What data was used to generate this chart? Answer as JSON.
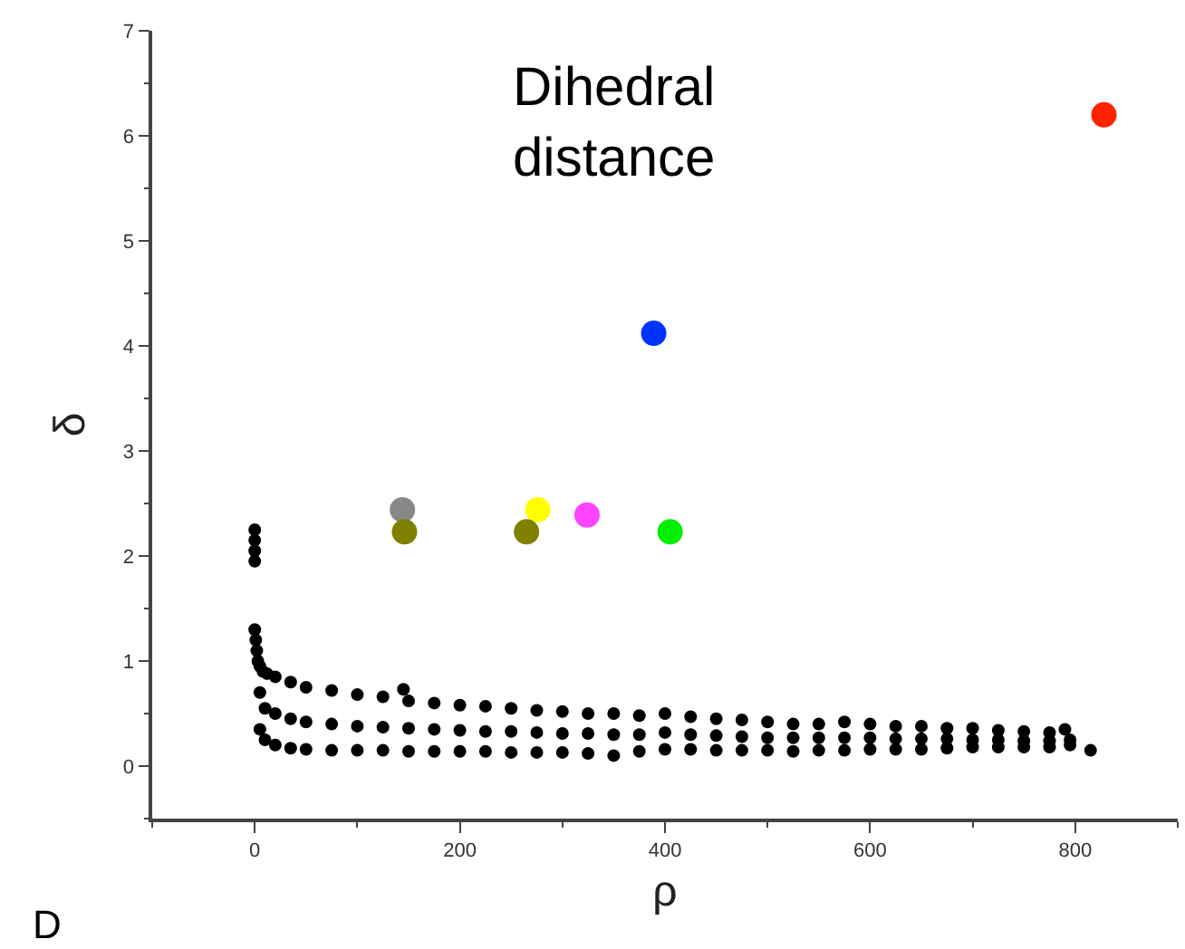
{
  "chart_data": {
    "type": "scatter",
    "title": "Dihedral\ndistance",
    "xlabel": "ρ",
    "ylabel": "δ",
    "xlim": [
      -100,
      900
    ],
    "xticks": [
      0,
      200,
      400,
      600,
      800
    ],
    "ylim": [
      -0.5,
      7
    ],
    "yticks": [
      0,
      1,
      2,
      3,
      4,
      5,
      6,
      7
    ],
    "marker": "circle",
    "annotations": [
      "D"
    ],
    "series": [
      {
        "color": "#000000",
        "x": [
          0,
          0,
          0,
          0,
          0,
          1,
          2,
          3,
          5,
          8,
          12,
          20,
          35,
          50,
          75,
          100,
          125,
          150,
          175,
          200,
          225,
          250,
          275,
          300,
          325,
          350,
          375,
          400,
          425,
          450,
          475,
          500,
          525,
          550,
          575,
          600,
          625,
          650,
          675,
          700,
          725,
          750,
          775,
          790,
          5,
          10,
          20,
          35,
          50,
          75,
          100,
          125,
          150,
          175,
          200,
          225,
          250,
          275,
          300,
          325,
          350,
          375,
          400,
          425,
          450,
          475,
          500,
          525,
          550,
          575,
          600,
          625,
          650,
          675,
          700,
          725,
          750,
          775,
          795,
          5,
          10,
          20,
          35,
          50,
          75,
          100,
          125,
          150,
          175,
          200,
          225,
          250,
          275,
          300,
          325,
          350,
          375,
          400,
          425,
          450,
          475,
          500,
          525,
          550,
          575,
          600,
          625,
          650,
          675,
          700,
          725,
          750,
          775,
          795,
          145,
          815
        ],
        "values": [
          1.95,
          2.05,
          2.15,
          2.25,
          1.3,
          1.2,
          1.1,
          1.0,
          0.95,
          0.9,
          0.88,
          0.85,
          0.8,
          0.75,
          0.72,
          0.68,
          0.66,
          0.62,
          0.6,
          0.58,
          0.57,
          0.55,
          0.53,
          0.52,
          0.5,
          0.5,
          0.48,
          0.5,
          0.47,
          0.45,
          0.44,
          0.42,
          0.4,
          0.4,
          0.42,
          0.4,
          0.38,
          0.38,
          0.36,
          0.36,
          0.34,
          0.33,
          0.32,
          0.35,
          0.35,
          0.25,
          0.2,
          0.17,
          0.16,
          0.15,
          0.15,
          0.15,
          0.14,
          0.14,
          0.14,
          0.14,
          0.13,
          0.13,
          0.13,
          0.12,
          0.1,
          0.14,
          0.16,
          0.16,
          0.15,
          0.15,
          0.15,
          0.14,
          0.15,
          0.15,
          0.16,
          0.16,
          0.16,
          0.17,
          0.18,
          0.18,
          0.18,
          0.18,
          0.2,
          0.7,
          0.55,
          0.5,
          0.45,
          0.42,
          0.4,
          0.38,
          0.37,
          0.36,
          0.35,
          0.34,
          0.33,
          0.33,
          0.32,
          0.31,
          0.31,
          0.3,
          0.3,
          0.32,
          0.3,
          0.29,
          0.28,
          0.27,
          0.27,
          0.27,
          0.27,
          0.27,
          0.26,
          0.26,
          0.26,
          0.25,
          0.25,
          0.24,
          0.24,
          0.25,
          0.73,
          0.15
        ]
      },
      {
        "x": [
          828,
          389,
          144,
          146,
          276,
          265,
          324,
          405
        ],
        "values": [
          6.2,
          4.12,
          2.44,
          2.23,
          2.44,
          2.23,
          2.39,
          2.23
        ],
        "colors": [
          "#ff2200",
          "#0033ff",
          "#888888",
          "#808000",
          "#ffff00",
          "#808000",
          "#ff44ff",
          "#00ee00"
        ]
      }
    ]
  }
}
